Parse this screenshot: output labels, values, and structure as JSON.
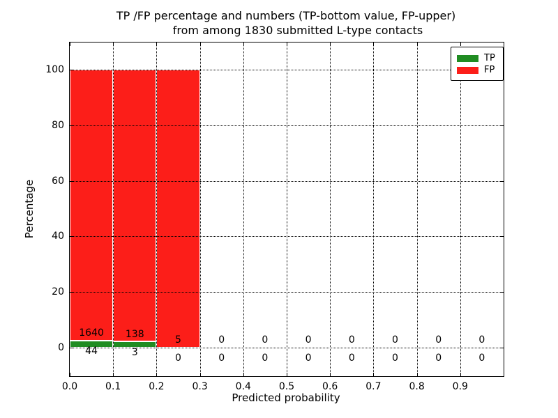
{
  "chart_data": {
    "type": "bar",
    "stacked": true,
    "title_line1": "TP /FP percentage and numbers (TP-bottom value, FP-upper)",
    "title_line2": "from among 1830 submitted L-type contacts",
    "xlabel": "Predicted probability",
    "ylabel": "Percentage",
    "total_contacts": 1830,
    "xtick_labels": [
      "0.0",
      "0.1",
      "0.2",
      "0.3",
      "0.4",
      "0.5",
      "0.6",
      "0.7",
      "0.8",
      "0.9"
    ],
    "yticks": [
      0,
      20,
      40,
      60,
      80,
      100
    ],
    "ytick_labels": [
      "0",
      "20",
      "40",
      "60",
      "80",
      "100"
    ],
    "ylim": [
      -10.3,
      109.8
    ],
    "xlim": [
      0.0,
      1.0
    ],
    "bin_width": 0.1,
    "grid": "dotted, drawn above bars",
    "series": [
      {
        "name": "TP",
        "color": "#208c22",
        "counts": [
          44,
          3,
          0,
          0,
          0,
          0,
          0,
          0,
          0,
          0
        ],
        "pct": [
          2.61,
          2.13,
          0,
          0,
          0,
          0,
          0,
          0,
          0,
          0
        ]
      },
      {
        "name": "FP",
        "color": "#fc1e19",
        "counts": [
          1640,
          138,
          5,
          0,
          0,
          0,
          0,
          0,
          0,
          0
        ],
        "pct": [
          97.39,
          97.87,
          100,
          0,
          0,
          0,
          0,
          0,
          0,
          0
        ]
      }
    ],
    "legend": {
      "position": "upper right",
      "entries": [
        {
          "label": "TP",
          "color": "#208c22"
        },
        {
          "label": "FP",
          "color": "#fc1e19"
        }
      ]
    },
    "colors": {
      "background": "#ffffff",
      "bar_edge": "#ffffff",
      "axis": "#000000",
      "grid": "#000000",
      "text": "#000000"
    }
  }
}
